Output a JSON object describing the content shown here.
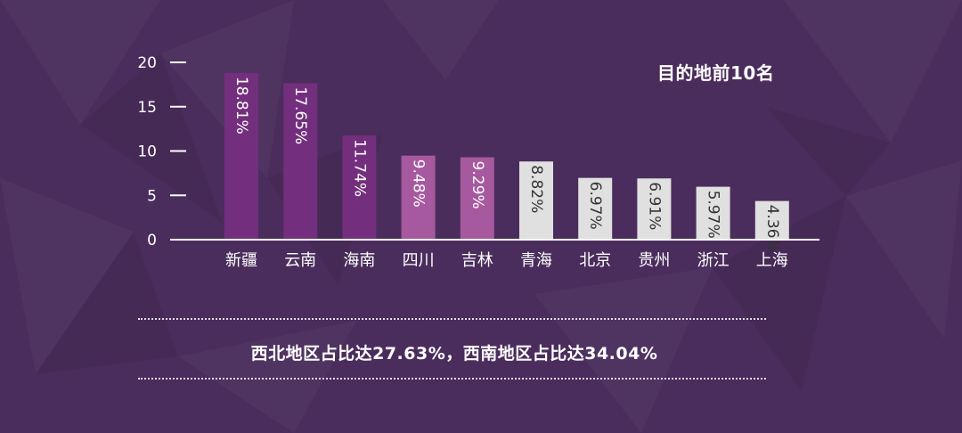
{
  "chart_data": {
    "type": "bar",
    "title": "目的地前10名",
    "categories": [
      "新疆",
      "云南",
      "海南",
      "四川",
      "吉林",
      "青海",
      "北京",
      "贵州",
      "浙江",
      "上海"
    ],
    "values": [
      18.81,
      17.65,
      11.74,
      9.48,
      9.29,
      8.82,
      6.97,
      6.91,
      5.97,
      4.36
    ],
    "data_labels": [
      "18.81%",
      "17.65%",
      "11.74%",
      "9.48%",
      "9.29%",
      "8.82%",
      "6.97%",
      "6.91%",
      "5.97%",
      "4.36%"
    ],
    "bar_colors": [
      "#732f7d",
      "#732f7d",
      "#732f7d",
      "#a7599f",
      "#a7599f",
      "#e0e0e0",
      "#e0e0e0",
      "#e0e0e0",
      "#e0e0e0",
      "#e0e0e0"
    ],
    "label_colors": [
      "#ffffff",
      "#ffffff",
      "#ffffff",
      "#ffffff",
      "#ffffff",
      "#333333",
      "#333333",
      "#333333",
      "#333333",
      "#333333"
    ],
    "yticks": [
      "0",
      "5",
      "10",
      "15",
      "20"
    ],
    "ylim": [
      0,
      20
    ],
    "xlabel": "",
    "ylabel": "",
    "grid": false
  },
  "summary": "西北地区占比达27.63%，西南地区占比达34.04%",
  "colors": {
    "background": "#4a2d5c",
    "axis": "#ffffff",
    "text": "#ffffff"
  }
}
